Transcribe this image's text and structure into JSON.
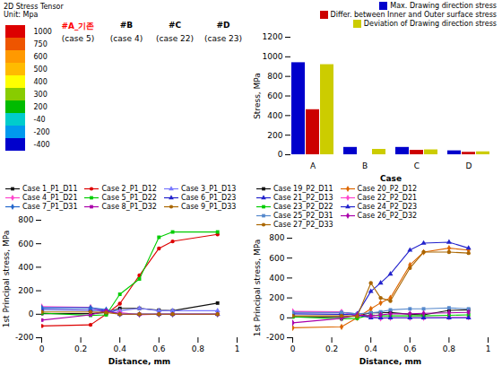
{
  "chart_data": [
    {
      "type": "colorbar",
      "title": "2D Stress Tensor",
      "subtitle": "Unit: Mpa",
      "colors": [
        "#dd0000",
        "#ee5500",
        "#ff9900",
        "#ffbb00",
        "#ffff00",
        "#88cc00",
        "#00bb00",
        "#00cccc",
        "#0099ee",
        "#0000cc"
      ],
      "values": [
        1000,
        750,
        600,
        500,
        400,
        300,
        200,
        -40,
        -200,
        -400
      ],
      "annotations": [
        {
          "text": "#A_기존",
          "color": "red"
        },
        {
          "text": "(case 5)",
          "color": "black"
        },
        {
          "text": "#B",
          "color": "black"
        },
        {
          "text": "(case 4)",
          "color": "black"
        },
        {
          "text": "#C",
          "color": "black"
        },
        {
          "text": "(case 22)",
          "color": "black"
        },
        {
          "text": "#D",
          "color": "black"
        },
        {
          "text": "(case 23)",
          "color": "black"
        }
      ]
    },
    {
      "type": "bar",
      "categories": [
        "A",
        "B",
        "C",
        "D"
      ],
      "series": [
        {
          "name": "Max. Drawing direction stress",
          "color": "#0000cc",
          "values": [
            940,
            75,
            75,
            40
          ]
        },
        {
          "name": "Differ. between Inner and Outer surface stress",
          "color": "#cc0000",
          "values": [
            460,
            0,
            45,
            25
          ]
        },
        {
          "name": "Deviation of Drawing direction stress",
          "color": "#cccc00",
          "values": [
            920,
            55,
            50,
            30
          ]
        }
      ],
      "ylim": [
        0,
        1200
      ],
      "yticks": [
        0,
        200,
        400,
        600,
        800,
        1000,
        1200
      ],
      "xlabel": "Case",
      "ylabel": "Stress, MPa",
      "legend": "upper right"
    },
    {
      "type": "line",
      "x": [
        0.0,
        0.25,
        0.33,
        0.4,
        0.5,
        0.6,
        0.67,
        0.9
      ],
      "series": [
        {
          "name": "Case 1_P1_D11",
          "color": "#111111",
          "marker": "square",
          "values": [
            5,
            5,
            15,
            50,
            50,
            35,
            30,
            95
          ]
        },
        {
          "name": "Case 2_P1_D12",
          "color": "#dd0000",
          "marker": "circle",
          "values": [
            -100,
            -90,
            0,
            90,
            330,
            560,
            620,
            680
          ]
        },
        {
          "name": "Case 3_P1_D13",
          "color": "#7777ff",
          "marker": "triangle",
          "values": [
            55,
            55,
            30,
            30,
            50,
            30,
            30,
            30
          ]
        },
        {
          "name": "Case 4_P1_D21",
          "color": "#ff44cc",
          "marker": "diamond",
          "values": [
            65,
            60,
            20,
            15,
            -5,
            0,
            0,
            0
          ]
        },
        {
          "name": "Case 5_P1_D22",
          "color": "#00cc00",
          "marker": "square",
          "values": [
            10,
            -10,
            -5,
            170,
            300,
            655,
            700,
            700
          ]
        },
        {
          "name": "Case 6_P1_D23",
          "color": "#2222cc",
          "marker": "triangle",
          "values": [
            40,
            35,
            30,
            0,
            0,
            0,
            0,
            0
          ]
        },
        {
          "name": "Case 7_P1_D31",
          "color": "#2266cc",
          "marker": "diamond",
          "values": [
            55,
            55,
            40,
            0,
            0,
            0,
            0,
            0
          ]
        },
        {
          "name": "Case 8_P1_D32",
          "color": "#aa00aa",
          "marker": "square",
          "values": [
            -50,
            -5,
            30,
            0,
            0,
            0,
            0,
            0
          ]
        },
        {
          "name": "Case 9_P1_D33",
          "color": "#aa6600",
          "marker": "circle",
          "values": [
            20,
            20,
            15,
            0,
            0,
            0,
            0,
            0
          ]
        }
      ],
      "xlim": [
        0.0,
        1.0
      ],
      "xticks": [
        0,
        0.2,
        0.4,
        0.6,
        0.8,
        1
      ],
      "ylim": [
        -200,
        800
      ],
      "yticks": [
        -200,
        0,
        200,
        400,
        600,
        800
      ],
      "xlabel": "Distance, mm",
      "ylabel": "1st Principal stress, MPa",
      "legend": "upper left"
    },
    {
      "type": "line",
      "x": [
        0.0,
        0.25,
        0.33,
        0.4,
        0.45,
        0.5,
        0.6,
        0.67,
        0.8,
        0.9
      ],
      "series": [
        {
          "name": "Case 19_P2_D11",
          "color": "#111111",
          "marker": "square",
          "values": [
            10,
            10,
            20,
            50,
            50,
            55,
            35,
            30,
            75,
            80
          ]
        },
        {
          "name": "Case 20_P2_D12",
          "color": "#dd6600",
          "marker": "diamond",
          "values": [
            -100,
            -90,
            0,
            90,
            150,
            200,
            530,
            660,
            700,
            680
          ]
        },
        {
          "name": "Case 21_P2_D13",
          "color": "#2222cc",
          "marker": "triangle",
          "values": [
            60,
            55,
            40,
            265,
            350,
            440,
            680,
            750,
            760,
            700
          ]
        },
        {
          "name": "Case 22_P2_D21",
          "color": "#ff44cc",
          "marker": "diamond",
          "values": [
            65,
            60,
            20,
            15,
            -5,
            0,
            0,
            0,
            5,
            5
          ]
        },
        {
          "name": "Case 23_P2_D22",
          "color": "#00cc00",
          "marker": "square",
          "values": [
            10,
            -10,
            -5,
            30,
            20,
            20,
            20,
            20,
            25,
            30
          ]
        },
        {
          "name": "Case 24_P2_D23",
          "color": "#2222cc",
          "marker": "triangle",
          "values": [
            40,
            35,
            30,
            0,
            0,
            0,
            0,
            0,
            0,
            0
          ]
        },
        {
          "name": "Case 25_P2_D31",
          "color": "#5588cc",
          "marker": "square",
          "values": [
            55,
            55,
            40,
            50,
            60,
            80,
            90,
            90,
            100,
            90
          ]
        },
        {
          "name": "Case 26_P2_D32",
          "color": "#aa00aa",
          "marker": "diamond",
          "values": [
            -50,
            -5,
            30,
            20,
            30,
            40,
            40,
            45,
            50,
            55
          ]
        },
        {
          "name": "Case 27_P2_D33",
          "color": "#aa6600",
          "marker": "circle",
          "values": [
            20,
            20,
            15,
            350,
            200,
            170,
            500,
            660,
            660,
            650
          ]
        }
      ],
      "xlim": [
        0.0,
        1.0
      ],
      "xticks": [
        0,
        0.2,
        0.4,
        0.6,
        0.8,
        1
      ],
      "ylim": [
        -200,
        800
      ],
      "yticks": [
        -200,
        0,
        200,
        400,
        600,
        800
      ],
      "xlabel": "Distance, mm",
      "ylabel": "1st Principal stress, MPa",
      "legend": "upper left"
    }
  ]
}
